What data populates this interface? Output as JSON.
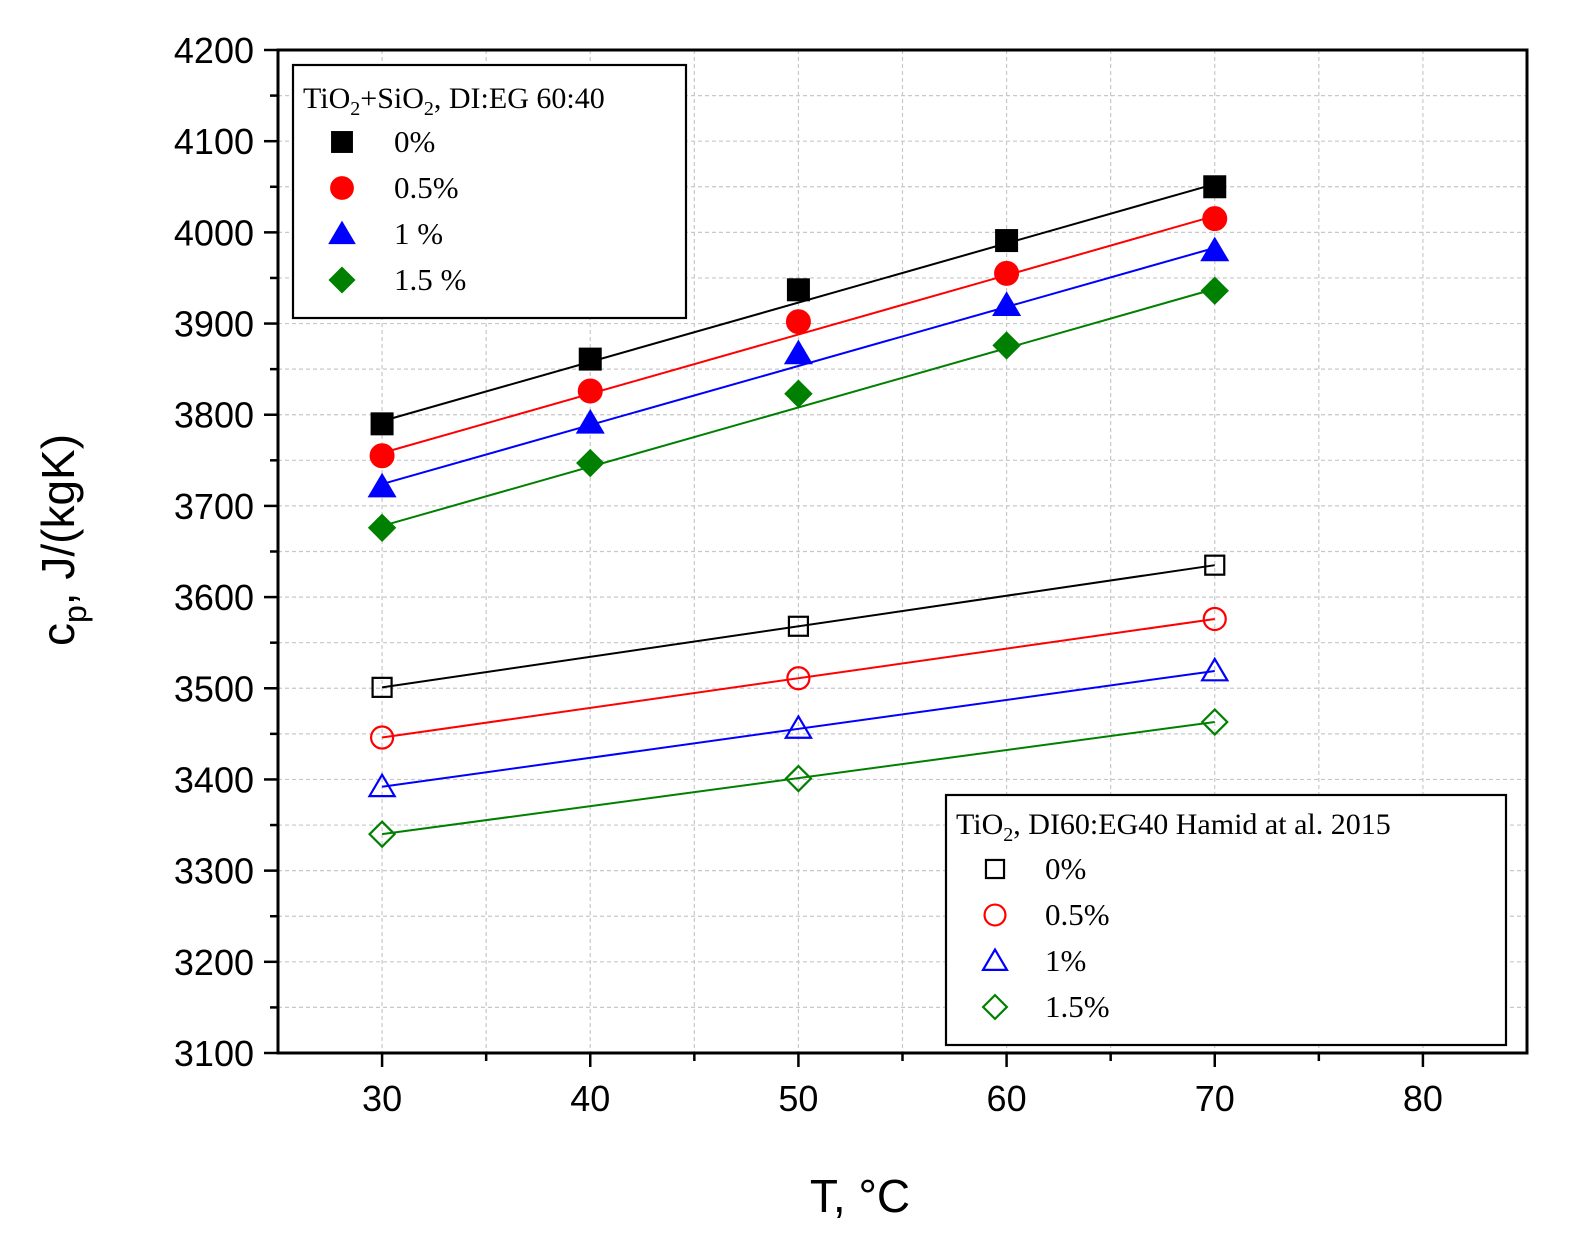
{
  "chart_data": {
    "type": "scatter",
    "xlabel": {
      "main": "T, ",
      "unit": "°C"
    },
    "ylabel": {
      "symbol": "c",
      "subscript": "p",
      "rest": ",  J/(kgK)"
    },
    "xlim": [
      25,
      85
    ],
    "ylim": [
      3100,
      4200
    ],
    "xticks": [
      "30",
      "40",
      "50",
      "60",
      "70",
      "80"
    ],
    "yticks": [
      "3100",
      "3200",
      "3300",
      "3400",
      "3500",
      "3600",
      "3700",
      "3800",
      "3900",
      "4000",
      "4100",
      "4200"
    ],
    "grid": true,
    "legends": [
      {
        "position": "top-left",
        "title_parts": [
          {
            "t": "TiO"
          },
          {
            "t": "2",
            "sub": true
          },
          {
            "t": "+SiO"
          },
          {
            "t": "2",
            "sub": true
          },
          {
            "t": ", DI:EG 60:40"
          }
        ],
        "entries": [
          "0%",
          "0.5%",
          "1 %",
          "1.5 %"
        ]
      },
      {
        "position": "bottom-right",
        "title_parts": [
          {
            "t": "TiO"
          },
          {
            "t": "2",
            "sub": true
          },
          {
            "t": ", DI60:EG40 Hamid at al. 2015"
          }
        ],
        "entries": [
          "0%",
          "0.5%",
          "1%",
          "1.5%"
        ]
      }
    ],
    "series": [
      {
        "name": "0%",
        "group": 0,
        "marker": "square",
        "filled": true,
        "color": "#000000",
        "x": [
          30,
          40,
          50,
          60,
          70
        ],
        "y": [
          3790,
          3861,
          3937,
          3991,
          4050
        ],
        "fit": [
          3793,
          4053
        ]
      },
      {
        "name": "0.5%",
        "group": 0,
        "marker": "circle",
        "filled": true,
        "color": "#ff0000",
        "x": [
          30,
          40,
          50,
          60,
          70
        ],
        "y": [
          3755,
          3826,
          3902,
          3955,
          4015
        ],
        "fit": [
          3758,
          4018
        ]
      },
      {
        "name": "1 %",
        "group": 0,
        "marker": "triangle",
        "filled": true,
        "color": "#0000ff",
        "x": [
          30,
          40,
          50,
          60,
          70
        ],
        "y": [
          3721,
          3791,
          3867,
          3920,
          3980
        ],
        "fit": [
          3724,
          3983
        ]
      },
      {
        "name": "1.5 %",
        "group": 0,
        "marker": "diamond",
        "filled": true,
        "color": "#008000",
        "x": [
          30,
          40,
          50,
          60,
          70
        ],
        "y": [
          3676,
          3747,
          3823,
          3876,
          3936
        ],
        "fit": [
          3678,
          3938
        ]
      },
      {
        "name": "0%",
        "group": 1,
        "marker": "square",
        "filled": false,
        "color": "#000000",
        "x": [
          30,
          50,
          70
        ],
        "y": [
          3501,
          3568,
          3635
        ],
        "fit": [
          3501,
          3635
        ]
      },
      {
        "name": "0.5%",
        "group": 1,
        "marker": "circle",
        "filled": false,
        "color": "#ff0000",
        "x": [
          30,
          50,
          70
        ],
        "y": [
          3446,
          3511,
          3576
        ],
        "fit": [
          3446,
          3576
        ]
      },
      {
        "name": "1%",
        "group": 1,
        "marker": "triangle",
        "filled": false,
        "color": "#0000ff",
        "x": [
          30,
          50,
          70
        ],
        "y": [
          3392,
          3456,
          3519
        ],
        "fit": [
          3392,
          3519
        ]
      },
      {
        "name": "1.5%",
        "group": 1,
        "marker": "diamond",
        "filled": false,
        "color": "#008000",
        "x": [
          30,
          50,
          70
        ],
        "y": [
          3340,
          3401,
          3463
        ],
        "fit": [
          3340,
          3463
        ]
      }
    ]
  }
}
